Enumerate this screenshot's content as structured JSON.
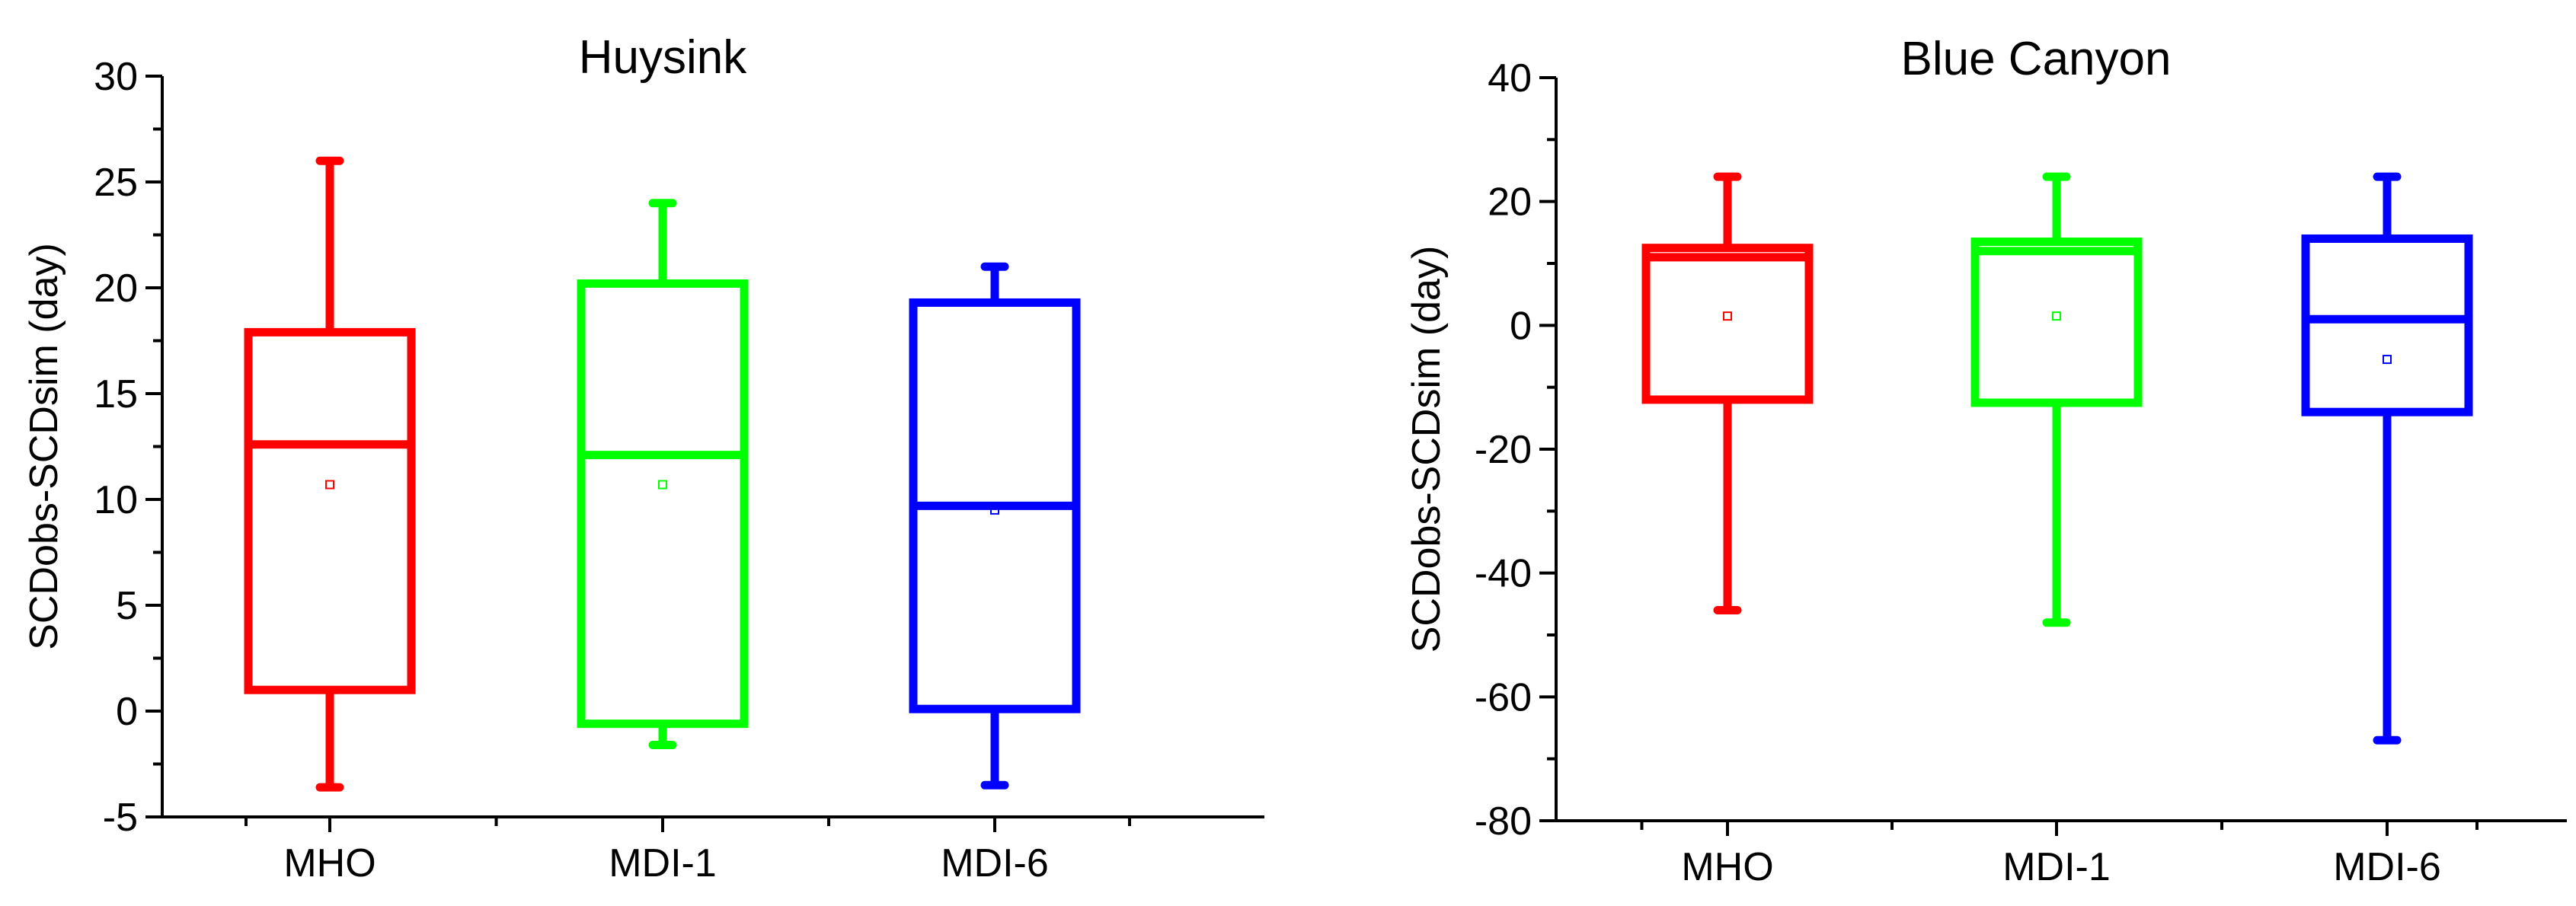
{
  "chart_data": [
    {
      "type": "box",
      "title": "Huysink",
      "xlabel": "",
      "ylabel": "SCDobs-SCDsim (day)",
      "ylim": [
        -5,
        30
      ],
      "yticks": [
        -5,
        0,
        5,
        10,
        15,
        20,
        25,
        30
      ],
      "categories": [
        "MHO",
        "MDI-1",
        "MDI-6"
      ],
      "boxes": [
        {
          "name": "MHO",
          "color": "#ff0000",
          "whisker_low": -3.6,
          "q1": 1.0,
          "median": 12.6,
          "q3": 17.9,
          "whisker_high": 26.0,
          "mean": 10.7
        },
        {
          "name": "MDI-1",
          "color": "#00ff00",
          "whisker_low": -1.6,
          "q1": -0.6,
          "median": 12.1,
          "q3": 20.2,
          "whisker_high": 24.0,
          "mean": 10.7
        },
        {
          "name": "MDI-6",
          "color": "#0000ff",
          "whisker_low": -3.5,
          "q1": 0.1,
          "median": 9.7,
          "q3": 19.3,
          "whisker_high": 21.0,
          "mean": 9.5
        }
      ]
    },
    {
      "type": "box",
      "title": "Blue Canyon",
      "xlabel": "",
      "ylabel": "SCDobs-SCDsim (day)",
      "ylim": [
        -80,
        40
      ],
      "yticks": [
        -80,
        -60,
        -40,
        -20,
        0,
        20,
        40
      ],
      "categories": [
        "MHO",
        "MDI-1",
        "MDI-6"
      ],
      "boxes": [
        {
          "name": "MHO",
          "color": "#ff0000",
          "whisker_low": -46,
          "q1": -12,
          "median": 11,
          "q3": 12.5,
          "whisker_high": 24,
          "mean": 1.5
        },
        {
          "name": "MDI-1",
          "color": "#00ff00",
          "whisker_low": -48,
          "q1": -12.5,
          "median": 12,
          "q3": 13.5,
          "whisker_high": 24,
          "mean": 1.5
        },
        {
          "name": "MDI-6",
          "color": "#0000ff",
          "whisker_low": -67,
          "q1": -14,
          "median": 1,
          "q3": 14,
          "whisker_high": 24,
          "mean": -5.5
        }
      ]
    }
  ]
}
